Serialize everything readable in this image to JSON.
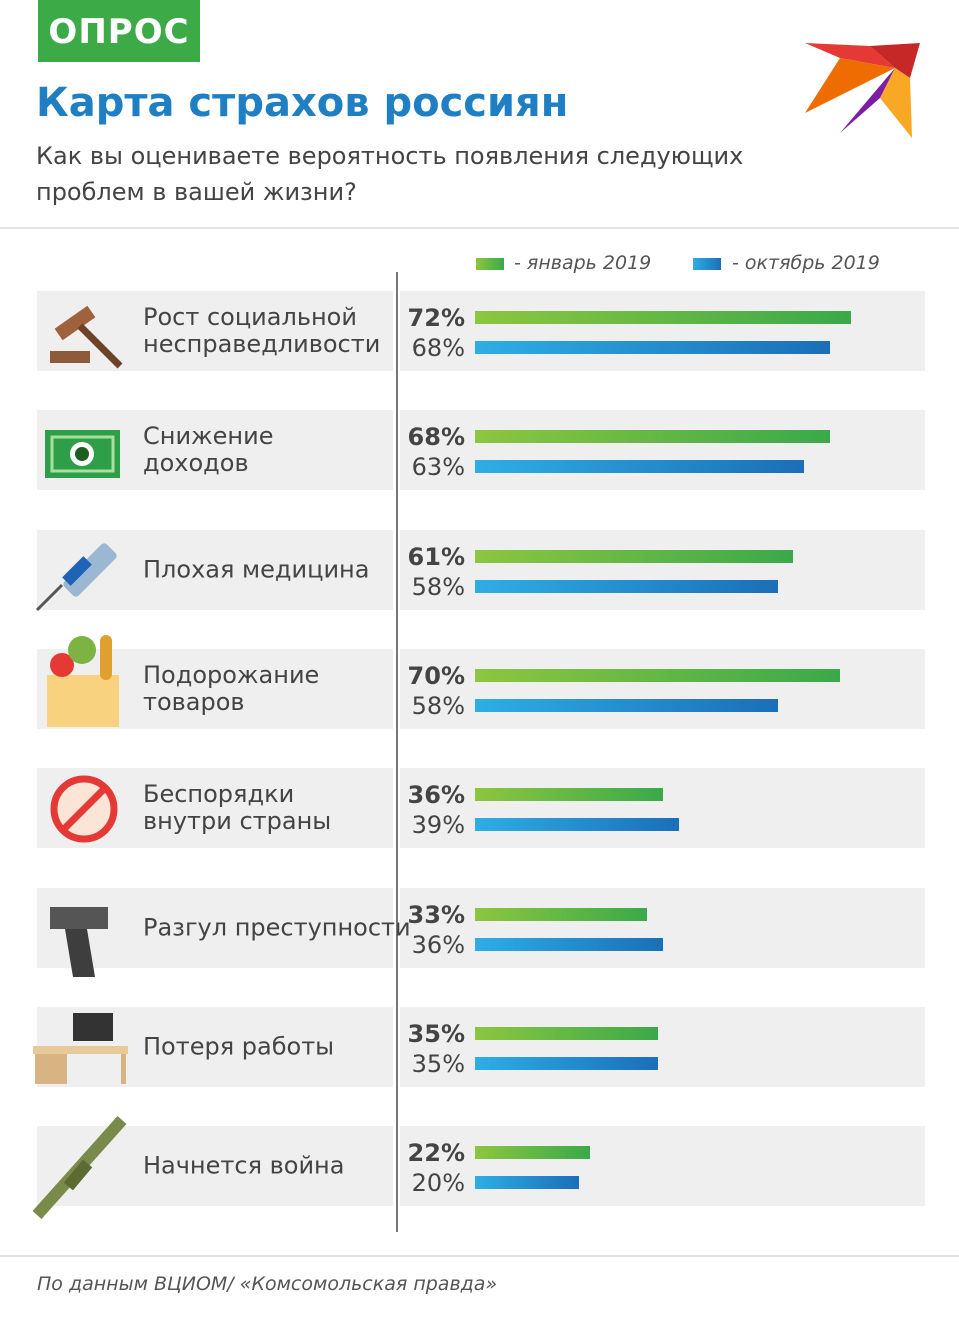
{
  "tag": "ОПРОС",
  "source": "По данным ВЦИОМ/ «Комсомольская правда»",
  "chart_data": {
    "type": "bar",
    "orientation": "horizontal",
    "title": "Карта страхов россиян",
    "subtitle": "Как вы оцениваете вероятность появления следующих\nпроблем в вашей жизни?",
    "categories": [
      "Рост социальной\nнесправедливости",
      "Снижение\nдоходов",
      "Плохая медицина",
      "Подорожание\nтоваров",
      "Беспорядки\nвнутри страны",
      "Разгул преступности",
      "Потеря работы",
      "Начнется война"
    ],
    "series": [
      {
        "name": "- январь 2019",
        "colors": [
          "#8dc63f",
          "#3aa94a"
        ],
        "values": [
          72,
          68,
          61,
          70,
          36,
          33,
          35,
          22
        ],
        "value_labels": [
          "72%",
          "68%",
          "61%",
          "70%",
          "36%",
          "33%",
          "35%",
          "22%"
        ]
      },
      {
        "name": "- октябрь 2019",
        "colors": [
          "#2eaee4",
          "#1b6fb8"
        ],
        "values": [
          68,
          63,
          58,
          58,
          39,
          36,
          35,
          20
        ],
        "value_labels": [
          "68%",
          "63%",
          "58%",
          "58%",
          "39%",
          "36%",
          "35%",
          "20%"
        ]
      }
    ]
  }
}
